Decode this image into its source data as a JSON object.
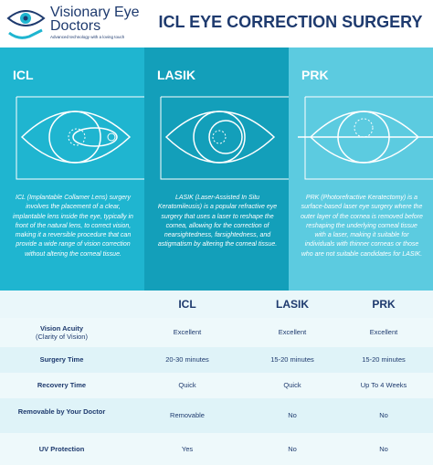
{
  "header": {
    "logo_name": "Visionary Eye Doctors",
    "tagline": "Advanced technology with a loving touch",
    "title": "ICL EYE CORRECTION SURGERY"
  },
  "procedures": [
    {
      "name": "ICL",
      "description": "ICL (Implantable Collamer Lens) surgery involves the placement of a clear, implantable lens inside the eye, typically in front of the natural lens, to correct vision, making it a reversible procedure that can provide a wide range of vision correction without altering the corneal tissue."
    },
    {
      "name": "LASIK",
      "description": "LASIK (Laser-Assisted In Situ Keratomileusis) is a popular refractive eye surgery that uses a laser to reshape the cornea, allowing for the correction of nearsightedness, farsightedness, and astigmatism by altering the corneal tissue."
    },
    {
      "name": "PRK",
      "description": "PRK (Photorefractive Keratectomy) is a surface-based laser eye surgery where the outer layer of the cornea is removed before reshaping the underlying corneal tissue with a laser, making it suitable for individuals with thinner corneas or those who are not suitable candidates for LASIK."
    }
  ],
  "table": {
    "columns": [
      "ICL",
      "LASIK",
      "PRK"
    ],
    "rows": [
      {
        "label": "Vision Acuity",
        "sublabel": "(Clarity of Vision)",
        "cells": [
          "Excellent",
          "Excellent",
          "Excellent"
        ]
      },
      {
        "label": "Surgery Time",
        "cells": [
          "20-30 minutes",
          "15-20 minutes",
          "15-20 minutes"
        ]
      },
      {
        "label": "Recovery Time",
        "cells": [
          "Quick",
          "Quick",
          "Up To 4 Weeks"
        ]
      },
      {
        "label": "Removable by Your Doctor",
        "cells": [
          "Removable",
          "No",
          "No"
        ]
      },
      {
        "label": "UV Protection",
        "cells": [
          "Yes",
          "No",
          "No"
        ]
      }
    ]
  }
}
